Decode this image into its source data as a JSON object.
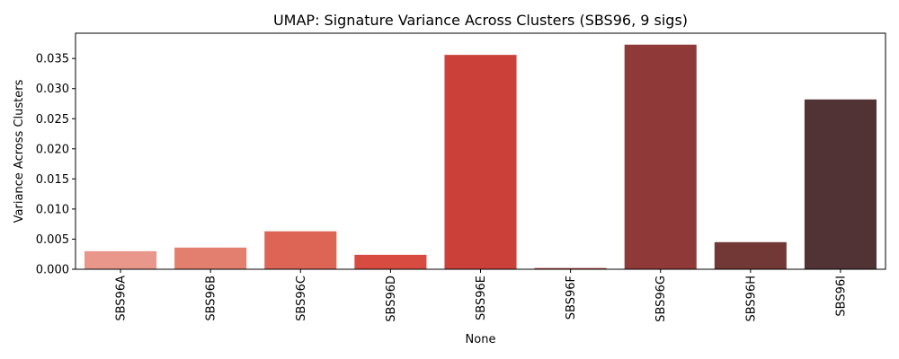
{
  "chart_data": {
    "type": "bar",
    "title": "UMAP: Signature Variance Across Clusters (SBS96, 9 sigs)",
    "xlabel": "None",
    "ylabel": "Variance Across Clusters",
    "categories": [
      "SBS96A",
      "SBS96B",
      "SBS96C",
      "SBS96D",
      "SBS96E",
      "SBS96F",
      "SBS96G",
      "SBS96H",
      "SBS96I"
    ],
    "values": [
      0.003,
      0.0036,
      0.0063,
      0.0024,
      0.0356,
      0.0002,
      0.0373,
      0.0045,
      0.0282
    ],
    "colors": [
      "#e9978a",
      "#e37f6f",
      "#dc6556",
      "#d74b40",
      "#cb4139",
      "#b03b35",
      "#8f3a38",
      "#723836",
      "#513336"
    ],
    "ylim": [
      0,
      0.0392
    ],
    "yticks": [
      0.0,
      0.005,
      0.01,
      0.015,
      0.02,
      0.025,
      0.03,
      0.035
    ],
    "ytick_labels": [
      "0.000",
      "0.005",
      "0.010",
      "0.015",
      "0.020",
      "0.025",
      "0.030",
      "0.035"
    ],
    "grid": false,
    "legend": "none"
  }
}
